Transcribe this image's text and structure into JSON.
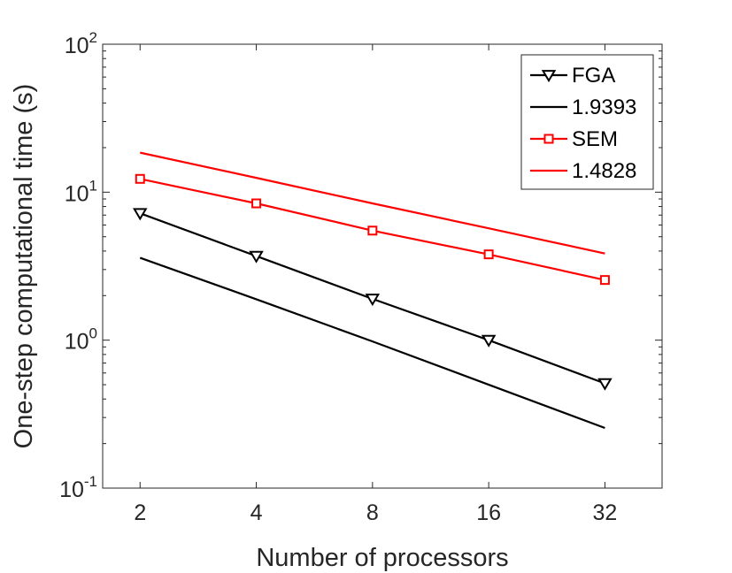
{
  "chart_data": {
    "type": "line",
    "title": "",
    "xlabel": "Number of processors",
    "ylabel": "One-step computational time (s)",
    "xscale": "log2",
    "yscale": "log10",
    "xlim": [
      1.6,
      45
    ],
    "ylim": [
      0.1,
      100
    ],
    "x": [
      2,
      4,
      8,
      16,
      32
    ],
    "x_tick_labels": [
      "2",
      "4",
      "8",
      "16",
      "32"
    ],
    "y_ticks": [
      {
        "value": 0.1,
        "base": "10",
        "exponent": "-1"
      },
      {
        "value": 1,
        "base": "10",
        "exponent": "0"
      },
      {
        "value": 10,
        "base": "10",
        "exponent": "1"
      },
      {
        "value": 100,
        "base": "10",
        "exponent": "2"
      }
    ],
    "legend_position": "top-right",
    "series": [
      {
        "name": "FGA",
        "color": "#000000",
        "marker": "triangle-down",
        "values": [
          7.2,
          3.7,
          1.9,
          1.0,
          0.51
        ]
      },
      {
        "name": "1.9393",
        "color": "#000000",
        "marker": "none",
        "values": [
          3.6,
          1.89,
          0.98,
          0.5,
          0.255
        ]
      },
      {
        "name": "SEM",
        "color": "#ff0000",
        "marker": "square",
        "values": [
          12.3,
          8.4,
          5.5,
          3.8,
          2.55
        ]
      },
      {
        "name": "1.4828",
        "color": "#ff0000",
        "marker": "none",
        "values": [
          18.5,
          12.5,
          8.4,
          5.7,
          3.85
        ]
      }
    ]
  }
}
